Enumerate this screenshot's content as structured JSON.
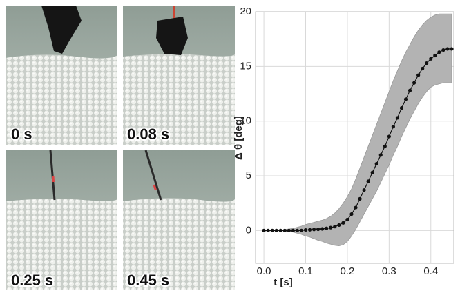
{
  "panels": [
    {
      "label": "0 s"
    },
    {
      "label": "0.08 s"
    },
    {
      "label": "0.25 s"
    },
    {
      "label": "0.45 s"
    }
  ],
  "chart_data": {
    "type": "line",
    "xlabel": "t [s]",
    "ylabel": "Δ θ [deg]",
    "x": [
      0,
      0.01,
      0.02,
      0.03,
      0.04,
      0.05,
      0.06,
      0.07,
      0.08,
      0.09,
      0.1,
      0.11,
      0.12,
      0.13,
      0.14,
      0.15,
      0.16,
      0.17,
      0.18,
      0.19,
      0.2,
      0.21,
      0.22,
      0.23,
      0.24,
      0.25,
      0.26,
      0.27,
      0.28,
      0.29,
      0.3,
      0.31,
      0.32,
      0.33,
      0.34,
      0.35,
      0.36,
      0.37,
      0.38,
      0.39,
      0.4,
      0.41,
      0.42,
      0.43,
      0.44,
      0.45
    ],
    "values": [
      0,
      0,
      0,
      0,
      0,
      0,
      0,
      0,
      0,
      0,
      0.05,
      0.07,
      0.1,
      0.12,
      0.15,
      0.2,
      0.27,
      0.36,
      0.5,
      0.7,
      1.0,
      1.5,
      2.1,
      2.9,
      3.7,
      4.5,
      5.3,
      6.1,
      6.9,
      7.7,
      8.6,
      9.5,
      10.3,
      11.2,
      12.0,
      12.8,
      13.5,
      14.2,
      14.8,
      15.3,
      15.7,
      16.0,
      16.3,
      16.5,
      16.6,
      16.6
    ],
    "color": "#111111",
    "band": {
      "color": "#b3b3b3",
      "lower": [
        0,
        0,
        0,
        0,
        0,
        -0.05,
        -0.1,
        -0.15,
        -0.25,
        -0.35,
        -0.5,
        -0.6,
        -0.75,
        -0.9,
        -1.0,
        -1.15,
        -1.25,
        -1.35,
        -1.4,
        -1.3,
        -1.0,
        -0.5,
        0.1,
        0.8,
        1.5,
        2.2,
        2.9,
        3.6,
        4.4,
        5.2,
        6.0,
        6.9,
        7.7,
        8.6,
        9.4,
        10.2,
        10.9,
        11.6,
        12.2,
        12.7,
        13.1,
        13.3,
        13.4,
        13.5,
        13.5,
        13.5
      ],
      "upper": [
        0,
        0,
        0,
        0,
        0,
        0.1,
        0.15,
        0.2,
        0.3,
        0.4,
        0.55,
        0.65,
        0.75,
        0.85,
        0.95,
        1.1,
        1.3,
        1.6,
        2.0,
        2.5,
        3.1,
        3.8,
        4.7,
        5.7,
        6.7,
        7.7,
        8.7,
        9.7,
        10.7,
        11.7,
        12.7,
        13.7,
        14.6,
        15.5,
        16.3,
        17.0,
        17.7,
        18.3,
        18.8,
        19.2,
        19.5,
        19.7,
        19.8,
        19.8,
        19.8,
        19.8
      ]
    },
    "xlim": [
      -0.02,
      0.455
    ],
    "ylim": [
      -3,
      20
    ],
    "xticks": [
      {
        "value": 0,
        "label": "0.0"
      },
      0.1,
      0.2,
      0.3,
      0.4
    ],
    "yticks": [
      0,
      5,
      10,
      15,
      20
    ],
    "grid": true
  }
}
